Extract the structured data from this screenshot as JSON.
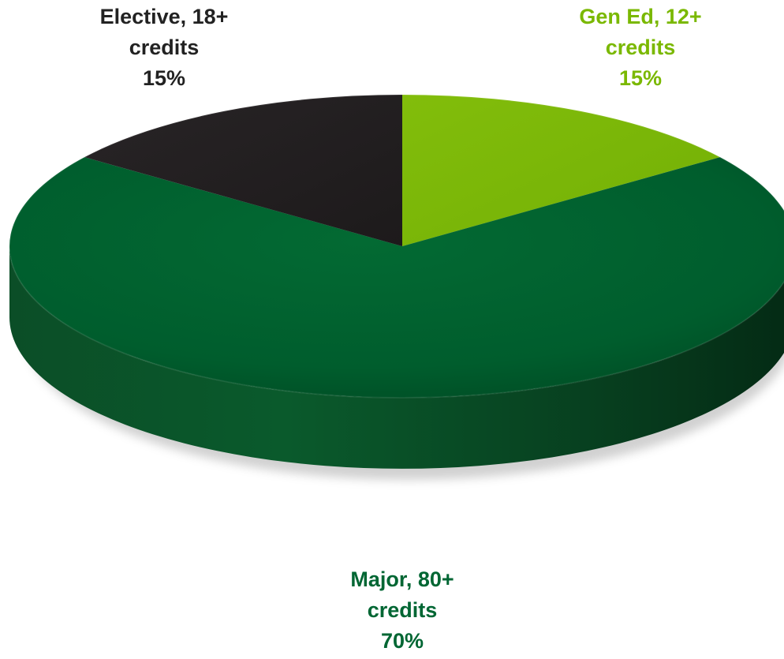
{
  "chart_data": {
    "type": "pie",
    "title": "",
    "slices": [
      {
        "name": "Gen Ed, 12+ credits",
        "line1": "Gen Ed, 12+",
        "line2": "credits",
        "value": 15,
        "pct_label": "15%",
        "color": "#7cb809"
      },
      {
        "name": "Major, 80+ credits",
        "line1": "Major,  80+",
        "line2": "credits",
        "value": 70,
        "pct_label": "70%",
        "color": "#00602f"
      },
      {
        "name": "Elective, 18+ credits",
        "line1": "Elective, 18+",
        "line2": "credits",
        "value": 15,
        "pct_label": "15%",
        "color": "#231f20"
      }
    ],
    "label_colors": {
      "gened": "#7ab800",
      "major": "#006633",
      "elective": "#222222"
    },
    "style": "3d"
  }
}
